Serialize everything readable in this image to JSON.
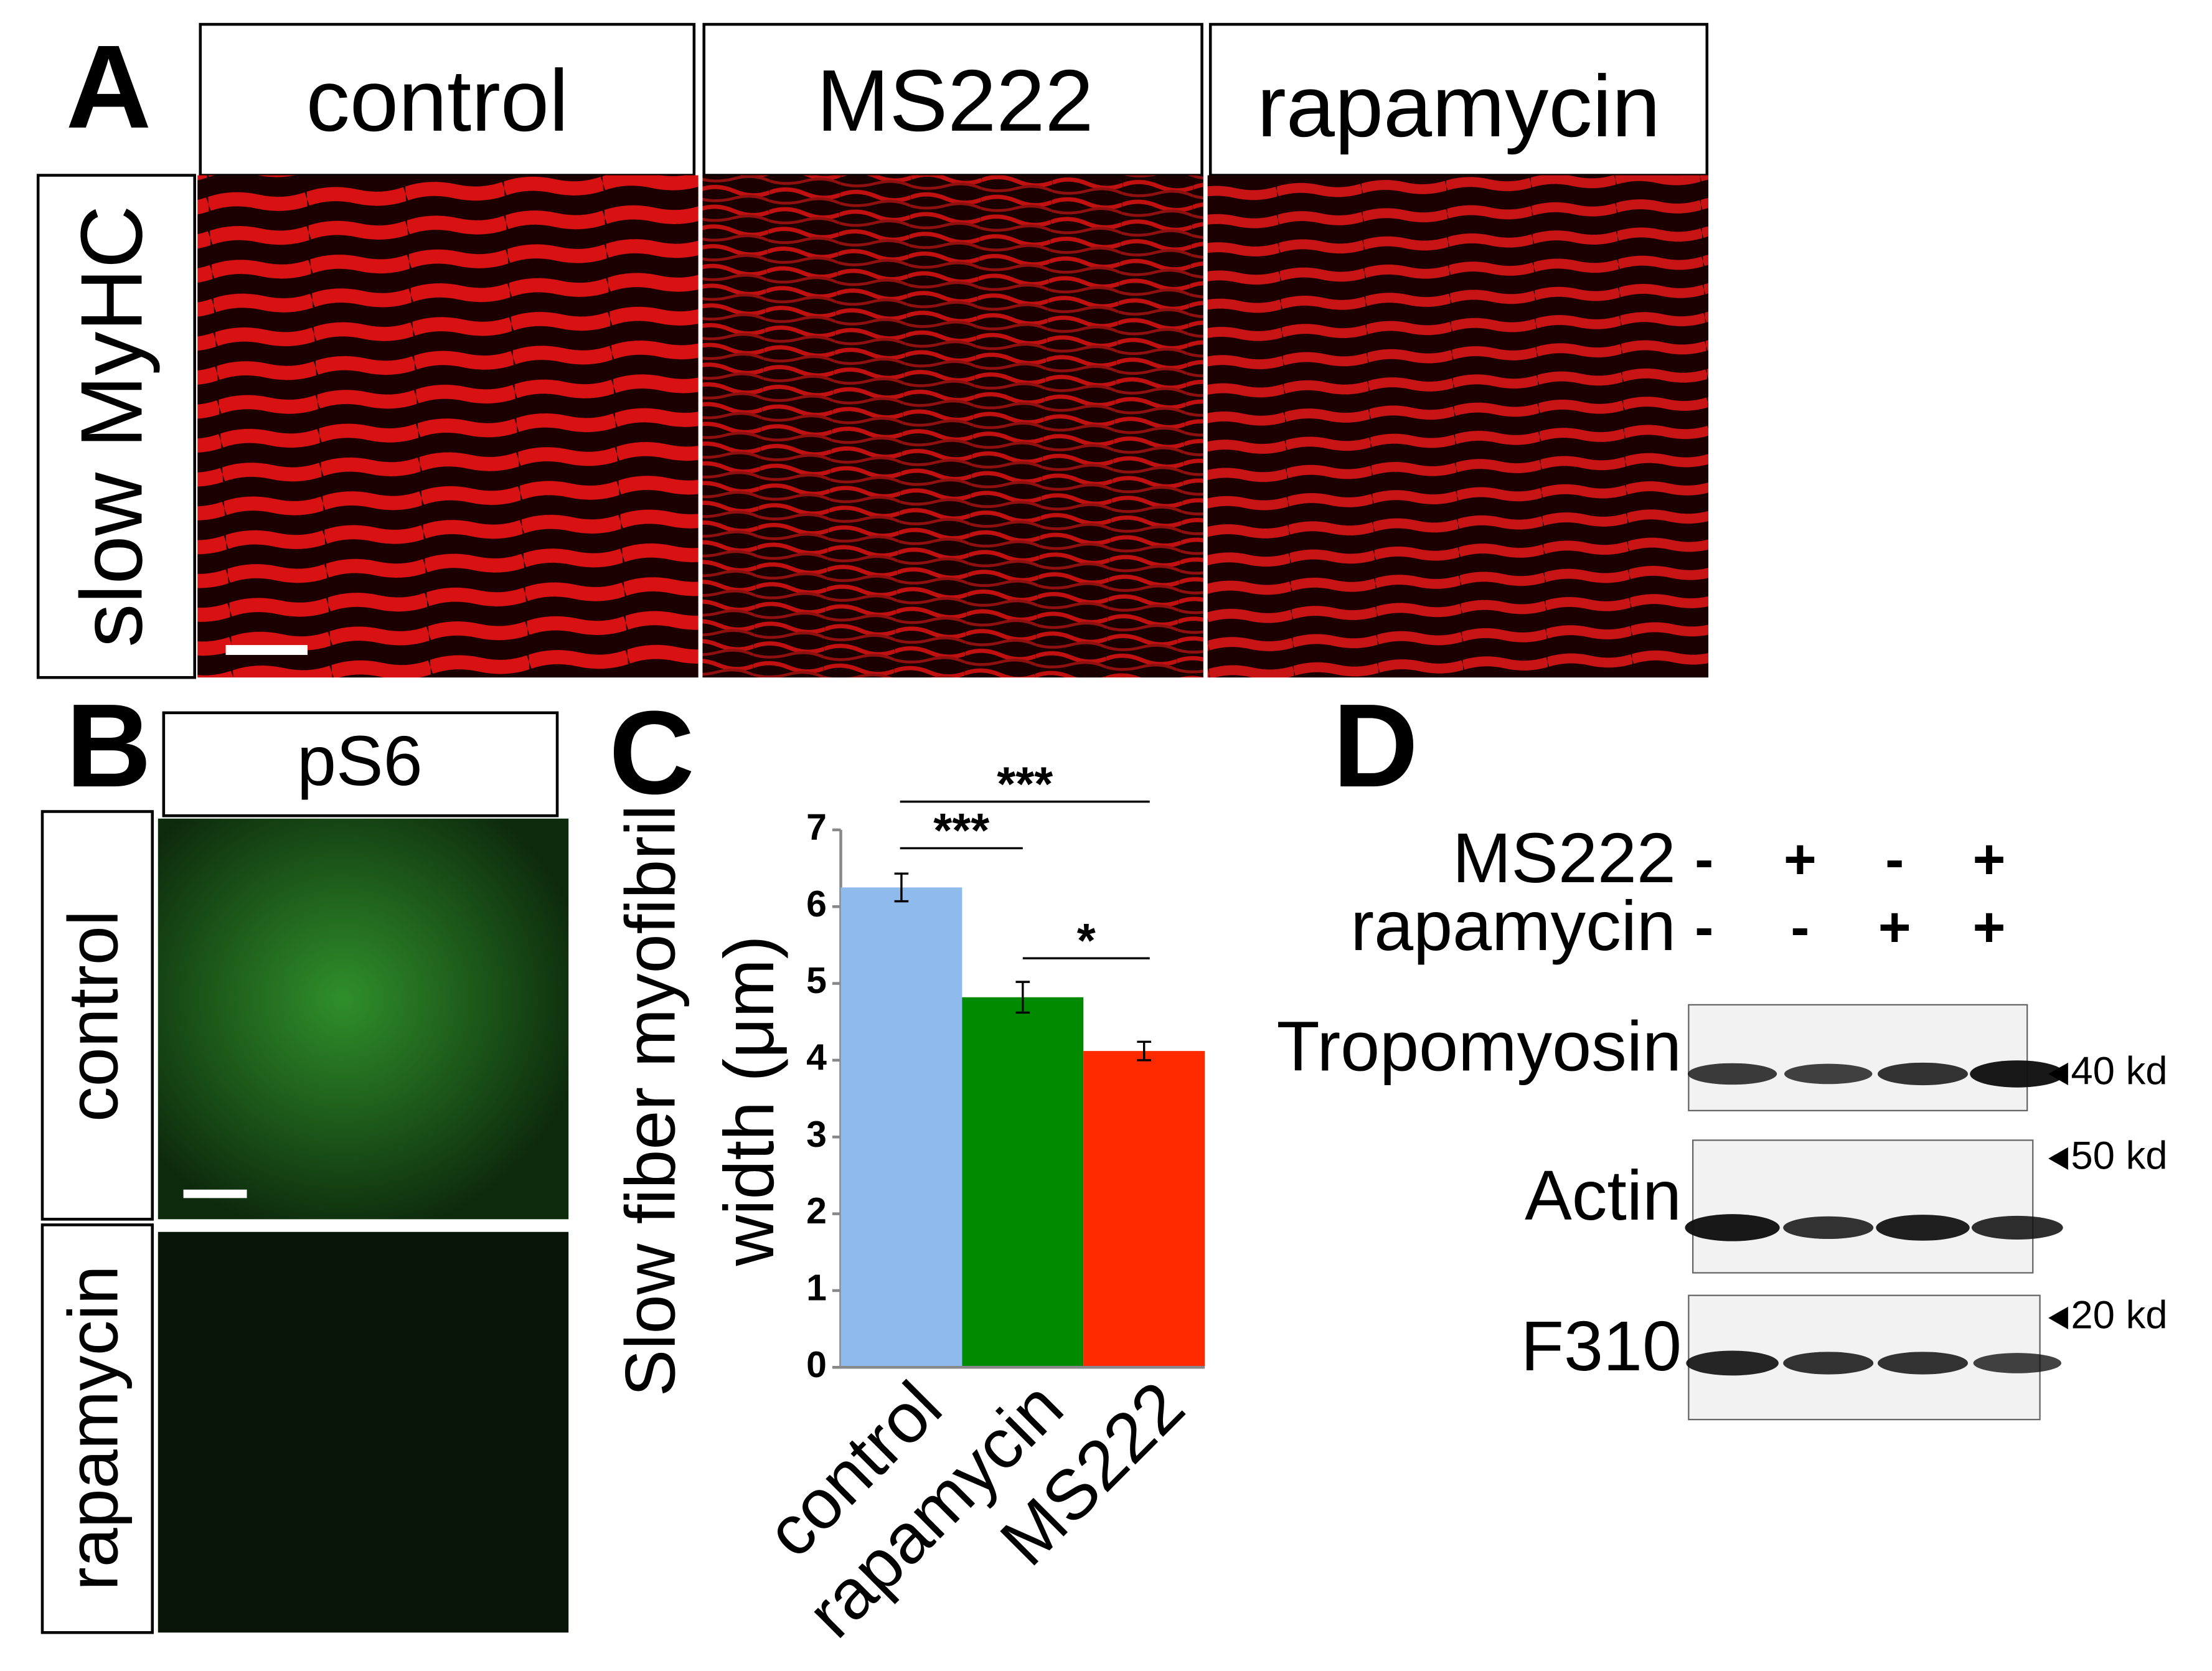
{
  "panel_a": {
    "label": "A",
    "columns": [
      "control",
      "MS222",
      "rapamycin"
    ],
    "row_label": "slow MyHC"
  },
  "panel_b": {
    "label": "B",
    "column": "pS6",
    "rows": [
      "control",
      "rapamycin"
    ]
  },
  "chart_data": {
    "type": "bar",
    "panel_label": "C",
    "y_label": [
      "Slow fiber myofibril",
      "width (μm)"
    ],
    "categories": [
      "control",
      "rapamycin",
      "MS222"
    ],
    "values": [
      6.25,
      4.82,
      4.12
    ],
    "errors": [
      0.18,
      0.2,
      0.12
    ],
    "colors": [
      "#8fbbec",
      "#008a00",
      "#ff2a00"
    ],
    "ylim": [
      0,
      7
    ],
    "yticks": [
      0,
      1,
      2,
      3,
      4,
      5,
      6,
      7
    ],
    "annotations": [
      "***",
      "***",
      "*"
    ]
  },
  "panel_d": {
    "label": "D",
    "treatments": [
      {
        "name": "MS222",
        "signs": [
          "-",
          "+",
          "-",
          "+"
        ]
      },
      {
        "name": "rapamycin",
        "signs": [
          "-",
          "-",
          "+",
          "+"
        ]
      }
    ],
    "blots": [
      {
        "name": "Tropomyosin",
        "marker": "40 kd"
      },
      {
        "name": "Actin",
        "marker": "50 kd"
      },
      {
        "name": "F310",
        "marker": "20 kd"
      }
    ]
  }
}
